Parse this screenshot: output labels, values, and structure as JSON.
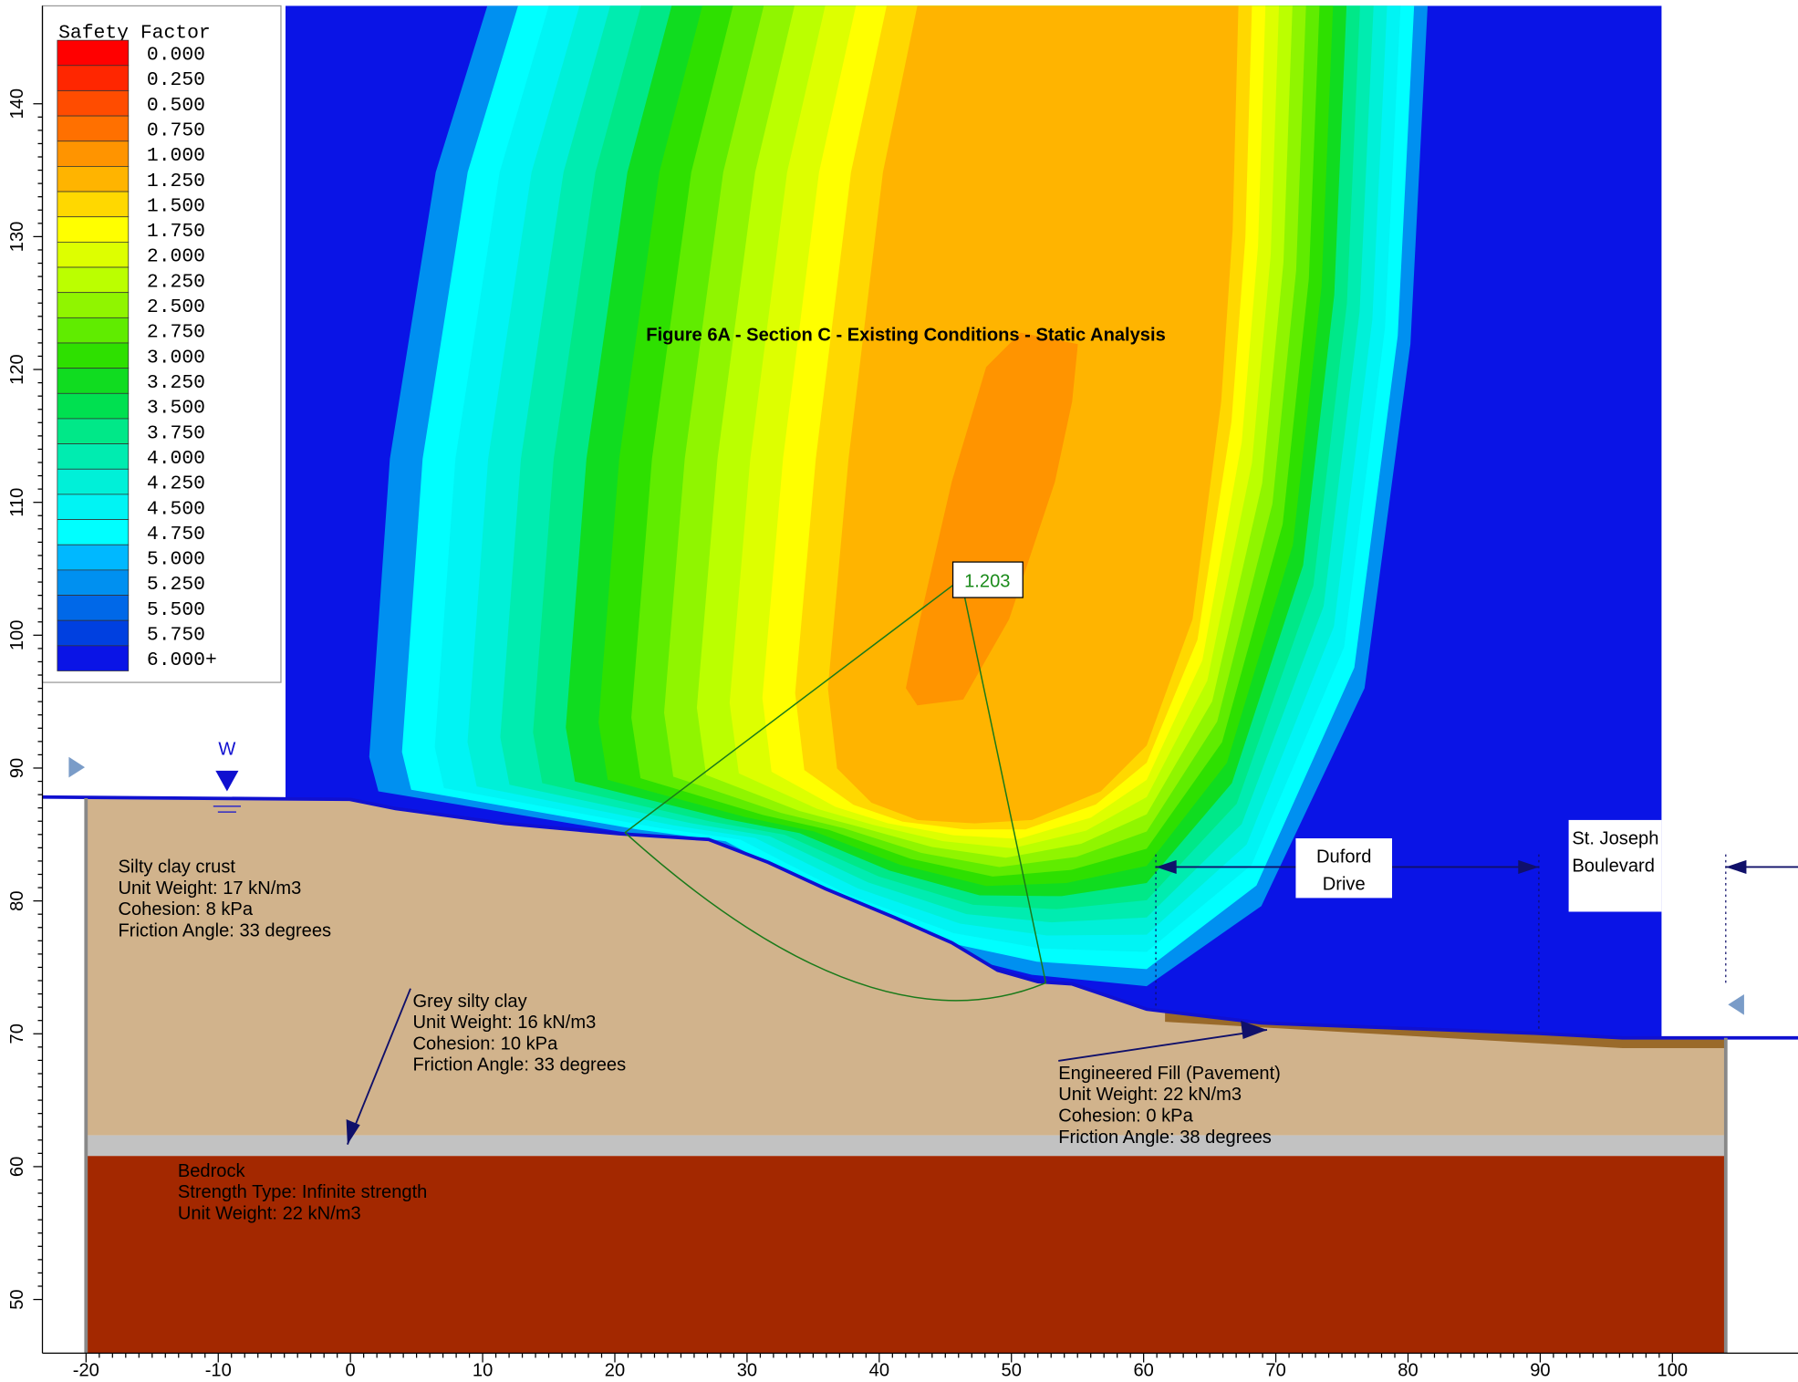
{
  "title": "Figure 6A - Section C - Existing Conditions - Static Analysis",
  "legend": {
    "title": "Safety Factor",
    "items": [
      {
        "label": "0.000",
        "color": "#ff0000"
      },
      {
        "label": "0.250",
        "color": "#ff2600"
      },
      {
        "label": "0.500",
        "color": "#ff4c00"
      },
      {
        "label": "0.750",
        "color": "#ff7000"
      },
      {
        "label": "1.000",
        "color": "#ff9400"
      },
      {
        "label": "1.250",
        "color": "#ffb400"
      },
      {
        "label": "1.500",
        "color": "#ffd800"
      },
      {
        "label": "1.750",
        "color": "#ffff00"
      },
      {
        "label": "2.000",
        "color": "#ddff00"
      },
      {
        "label": "2.250",
        "color": "#bbff00"
      },
      {
        "label": "2.500",
        "color": "#90f500"
      },
      {
        "label": "2.750",
        "color": "#60ec00"
      },
      {
        "label": "3.000",
        "color": "#2ee000"
      },
      {
        "label": "3.250",
        "color": "#10dc20"
      },
      {
        "label": "3.500",
        "color": "#00e050"
      },
      {
        "label": "3.750",
        "color": "#00e888"
      },
      {
        "label": "4.000",
        "color": "#00ecb0"
      },
      {
        "label": "4.250",
        "color": "#00f0d8"
      },
      {
        "label": "4.500",
        "color": "#00f4f4"
      },
      {
        "label": "4.750",
        "color": "#00ffff"
      },
      {
        "label": "5.000",
        "color": "#00b8ff"
      },
      {
        "label": "5.250",
        "color": "#0090f0"
      },
      {
        "label": "5.500",
        "color": "#0068e8"
      },
      {
        "label": "5.750",
        "color": "#0040e0"
      },
      {
        "label": "6.000+",
        "color": "#0a14e6"
      }
    ]
  },
  "critical_factor": "1.203",
  "water_label": "W",
  "axes": {
    "xlim": [
      -23.3,
      109.5
    ],
    "ylim": [
      43.8,
      147.8
    ],
    "xticks": [
      -20,
      -10,
      0,
      10,
      20,
      30,
      40,
      50,
      60,
      70,
      80,
      90,
      100
    ],
    "yticks": [
      50,
      60,
      70,
      80,
      90,
      100,
      110,
      120,
      130,
      140
    ]
  },
  "materials": [
    {
      "lines": [
        "Silty clay crust",
        "Unit Weight: 17 kN/m3",
        "Cohesion: 8 kPa",
        "Friction Angle: 33 degrees"
      ]
    },
    {
      "lines": [
        "Grey silty clay",
        "Unit Weight: 16 kN/m3",
        "Cohesion: 10 kPa",
        "Friction Angle: 33 degrees"
      ]
    },
    {
      "lines": [
        "Engineered Fill (Pavement)",
        "Unit Weight: 22 kN/m3",
        "Cohesion: 0 kPa",
        "Friction Angle: 38 degrees"
      ]
    },
    {
      "lines": [
        "Bedrock",
        "Strength Type: Infinite strength",
        "Unit Weight: 22 kN/m3"
      ]
    }
  ],
  "roads": [
    {
      "lines": [
        "Duford",
        "Drive"
      ]
    },
    {
      "lines": [
        "St. Joseph",
        "Boulevard"
      ]
    }
  ]
}
